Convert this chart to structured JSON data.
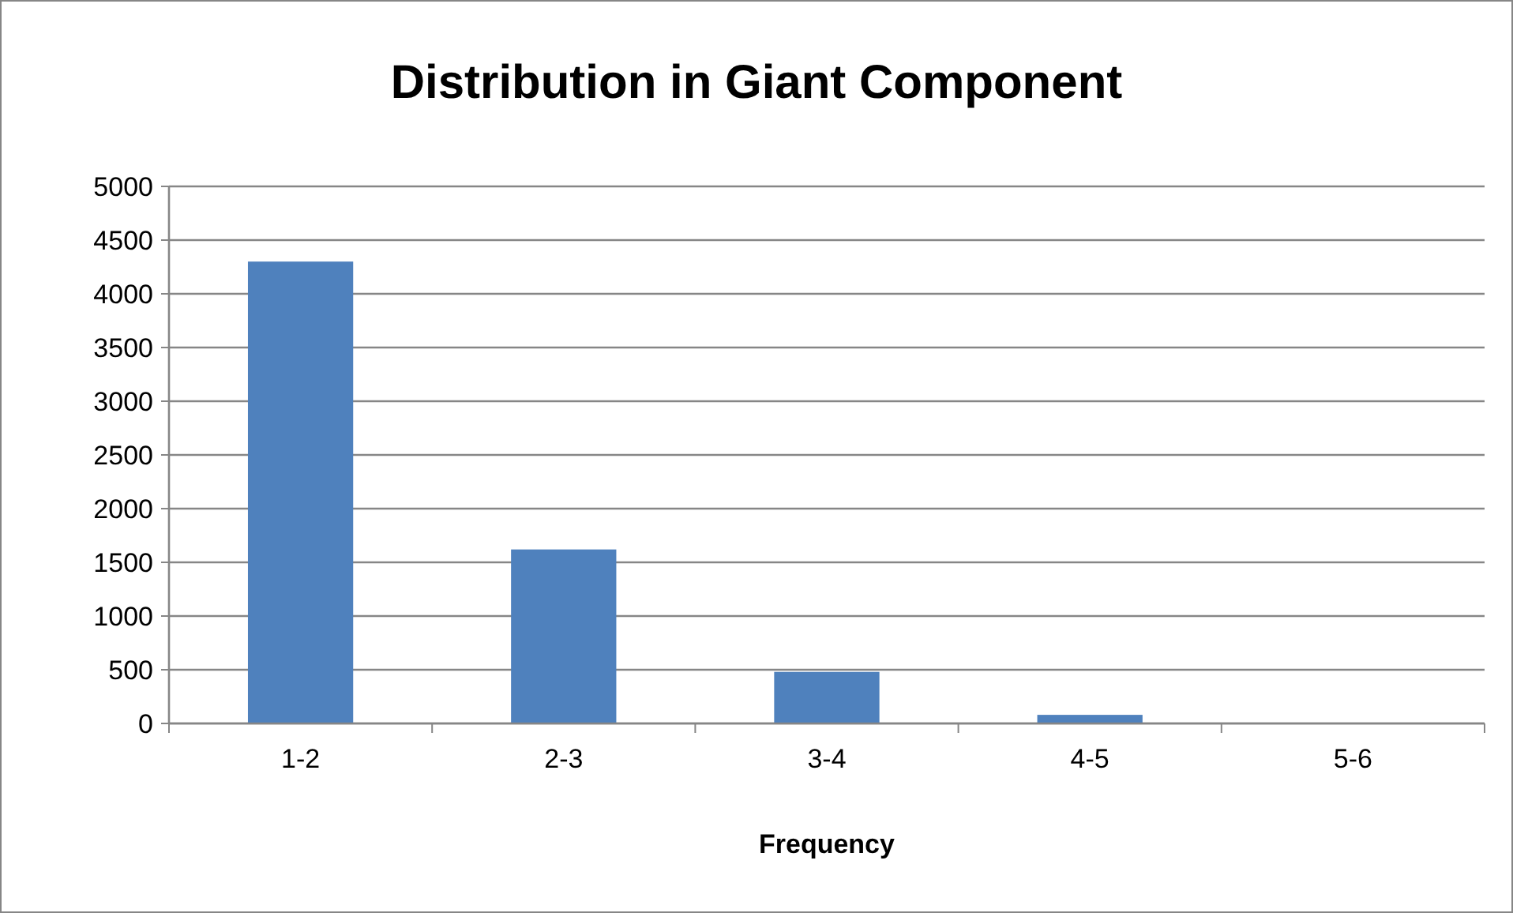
{
  "chart_data": {
    "type": "bar",
    "title": "Distribution in Giant Component",
    "xlabel": "Frequency",
    "categories": [
      "1-2",
      "2-3",
      "3-4",
      "4-5",
      "5-6"
    ],
    "values": [
      4300,
      1620,
      480,
      80,
      0
    ],
    "color": "#4f81bd",
    "ylim": [
      0,
      5000
    ],
    "yticks": [
      0,
      500,
      1000,
      1500,
      2000,
      2500,
      3000,
      3500,
      4000,
      4500,
      5000
    ],
    "grid": "y"
  }
}
